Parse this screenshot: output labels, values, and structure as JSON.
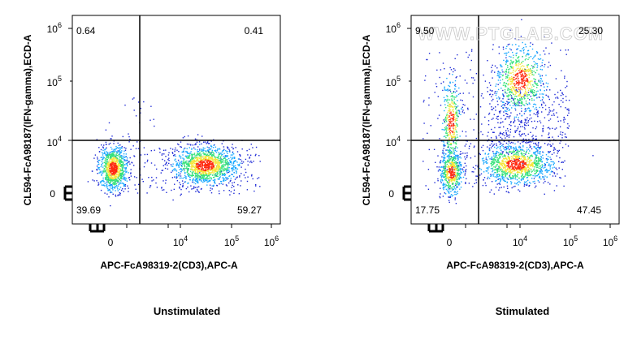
{
  "watermark": "WWW.PTGLAB.COM",
  "colors": {
    "density_low": "#1f2bd6",
    "density_mid1": "#19a9ff",
    "density_mid2": "#34e27a",
    "density_mid3": "#f5e63a",
    "density_high": "#ff2a10",
    "gate_line": "#000000"
  },
  "chart_data": [
    {
      "type": "scatter",
      "subtype": "flow-cytometry-density-plot",
      "caption": "Unstimulated",
      "xlabel": "APC-FcA98319-2(CD3),APC-A",
      "ylabel": "CL594-FcA98187(IFN-gamma),ECD-A",
      "x_ticks": [
        {
          "base": "0",
          "exp": ""
        },
        {
          "base": "10",
          "exp": "4"
        },
        {
          "base": "10",
          "exp": "5"
        },
        {
          "base": "10",
          "exp": "6"
        }
      ],
      "y_ticks": [
        {
          "base": "0",
          "exp": ""
        },
        {
          "base": "10",
          "exp": "4"
        },
        {
          "base": "10",
          "exp": "5"
        },
        {
          "base": "10",
          "exp": "6"
        }
      ],
      "quadrants": {
        "UL": "0.64",
        "UR": "0.41",
        "LL": "39.69",
        "LR": "59.27"
      },
      "populations": [
        {
          "name": "CD3- IFN-gamma-",
          "center": [
            "0",
            "3000"
          ],
          "percent": 39.69
        },
        {
          "name": "CD3+ IFN-gamma-",
          "center": [
            "30000",
            "3000"
          ],
          "percent": 59.27
        }
      ]
    },
    {
      "type": "scatter",
      "subtype": "flow-cytometry-density-plot",
      "caption": "Stimulated",
      "xlabel": "APC-FcA98319-2(CD3),APC-A",
      "ylabel": "CL594-FcA98187(IFN-gamma),ECD-A",
      "x_ticks": [
        {
          "base": "0",
          "exp": ""
        },
        {
          "base": "10",
          "exp": "4"
        },
        {
          "base": "10",
          "exp": "5"
        },
        {
          "base": "10",
          "exp": "6"
        }
      ],
      "y_ticks": [
        {
          "base": "0",
          "exp": ""
        },
        {
          "base": "10",
          "exp": "4"
        },
        {
          "base": "10",
          "exp": "5"
        },
        {
          "base": "10",
          "exp": "6"
        }
      ],
      "quadrants": {
        "UL": "9.50",
        "UR": "25.30",
        "LL": "17.75",
        "LR": "47.45"
      },
      "populations": [
        {
          "name": "CD3- IFN-gamma-",
          "center": [
            "0",
            "3000"
          ],
          "percent": 17.75
        },
        {
          "name": "CD3- IFN-gamma+",
          "center": [
            "0",
            "15000"
          ],
          "percent": 9.5
        },
        {
          "name": "CD3+ IFN-gamma-",
          "center": [
            "12000",
            "3000"
          ],
          "percent": 47.45
        },
        {
          "name": "CD3+ IFN-gamma+",
          "center": [
            "12000",
            "120000"
          ],
          "percent": 25.3
        }
      ]
    }
  ]
}
